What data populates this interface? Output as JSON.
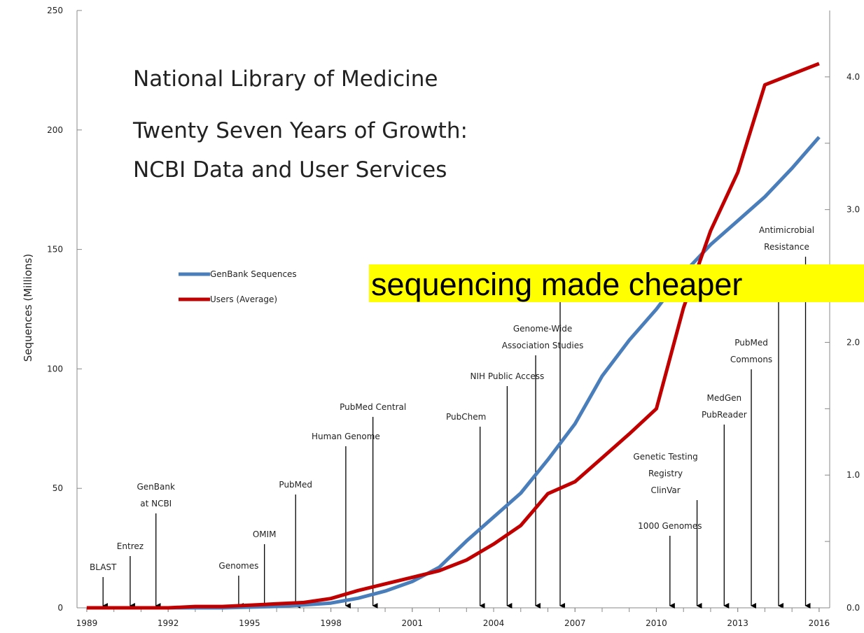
{
  "chart_data": {
    "type": "line",
    "title": "National Library of Medicine",
    "subtitle": [
      "Twenty Seven Years of Growth:",
      "NCBI Data and User Services"
    ],
    "ylabel": "Sequences (Millions)",
    "x": [
      1989,
      1990,
      1991,
      1992,
      1993,
      1994,
      1995,
      1996,
      1997,
      1998,
      1999,
      2000,
      2001,
      2002,
      2003,
      2004,
      2005,
      2006,
      2007,
      2008,
      2009,
      2010,
      2011,
      2012,
      2013,
      2014,
      2015,
      2016
    ],
    "xlim": [
      1988.64,
      2016.39
    ],
    "xticks": [
      1989,
      1992,
      1995,
      1998,
      2001,
      2004,
      2007,
      2010,
      2013,
      2016
    ],
    "ylim": [
      0,
      250
    ],
    "yticks": [
      0,
      50,
      100,
      150,
      200,
      250
    ],
    "y2lim": [
      0,
      4.5
    ],
    "y2ticks": [
      {
        "value": 0,
        "label": "0.0"
      },
      {
        "value": 1,
        "label": "1.0"
      },
      {
        "value": 2,
        "label": "2.0"
      },
      {
        "value": 3,
        "label": "3.0"
      },
      {
        "value": 4,
        "label": "4.0"
      }
    ],
    "series": [
      {
        "name": "GenBank Sequences",
        "color": "#4a7ebb",
        "values": [
          0,
          0,
          0,
          0,
          0,
          0,
          0.3,
          0.6,
          1.2,
          2,
          4,
          7,
          11,
          17,
          28,
          38,
          48,
          62,
          77,
          97,
          112,
          125,
          140,
          152,
          162,
          172,
          184,
          197
        ]
      },
      {
        "name": "Users (Average)",
        "color": "#c00000",
        "axis": "y2",
        "values": [
          0,
          0,
          0,
          0,
          0.01,
          0.01,
          0.02,
          0.03,
          0.04,
          0.07,
          0.13,
          0.18,
          0.23,
          0.28,
          0.36,
          0.48,
          0.62,
          0.86,
          0.95,
          1.13,
          1.31,
          1.5,
          2.26,
          2.84,
          3.28,
          3.94,
          4.02,
          4.1
        ]
      }
    ],
    "annotations": [
      {
        "text": [
          "BLAST"
        ],
        "x": 1989.6
      },
      {
        "text": [
          "Entrez"
        ],
        "x": 1990.6
      },
      {
        "text": [
          "GenBank",
          "at NCBI"
        ],
        "x": 1991.55
      },
      {
        "text": [
          "Genomes"
        ],
        "x": 1994.6
      },
      {
        "text": [
          "OMIM"
        ],
        "x": 1995.55
      },
      {
        "text": [
          "PubMed"
        ],
        "x": 1996.7
      },
      {
        "text": [
          "Human Genome"
        ],
        "x": 1998.55
      },
      {
        "text": [
          "PubMed Central"
        ],
        "x": 1999.55
      },
      {
        "text": [
          "PubChem"
        ],
        "x": 2003.5
      },
      {
        "text": [
          "NIH Public Access"
        ],
        "x": 2004.5
      },
      {
        "text": [
          "Genome-Wide",
          "Association Studies"
        ],
        "x": 2005.55
      },
      {
        "text": [
          "1000 Genomes"
        ],
        "x": 2010.5
      },
      {
        "text": [
          "Genetic Testing",
          "Registry",
          "ClinVar"
        ],
        "x": 2011.5
      },
      {
        "text": [
          "MedGen",
          "PubReader"
        ],
        "x": 2012.5
      },
      {
        "text": [
          "PubMed",
          "Commons"
        ],
        "x": 2013.5
      },
      {
        "text": [
          "Antimicrobial",
          "Resistance"
        ],
        "x": 2015.5
      }
    ],
    "banner": "sequencing made cheaper"
  }
}
